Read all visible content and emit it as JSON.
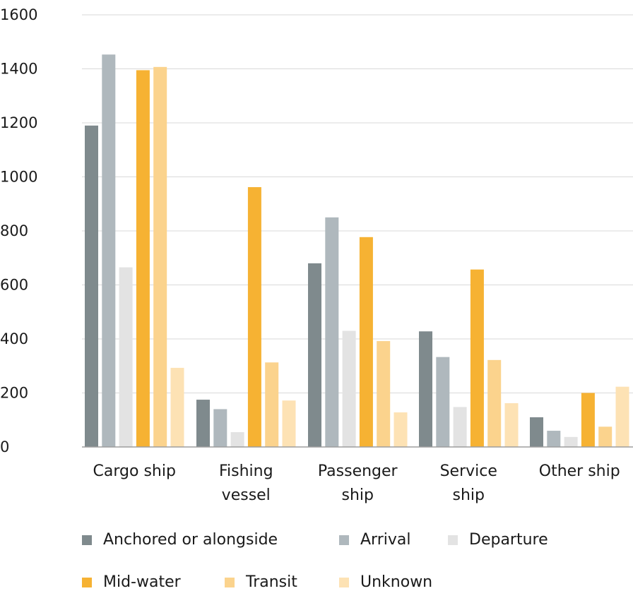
{
  "chart_data": {
    "type": "bar",
    "categories": [
      [
        "Cargo ship"
      ],
      [
        "Fishing",
        "vessel"
      ],
      [
        "Passenger",
        "ship"
      ],
      [
        "Service",
        "ship"
      ],
      [
        "Other ship"
      ]
    ],
    "series": [
      {
        "name": "Anchored or alongside",
        "color": "#7f8a8d",
        "values": [
          1190,
          175,
          680,
          428,
          110
        ]
      },
      {
        "name": "Arrival",
        "color": "#afb8bd",
        "values": [
          1453,
          140,
          850,
          333,
          60
        ]
      },
      {
        "name": "Departure",
        "color": "#e3e3e3",
        "values": [
          665,
          55,
          430,
          148,
          37
        ]
      },
      {
        "name": "Mid-water",
        "color": "#f6b233",
        "values": [
          1395,
          962,
          777,
          657,
          200
        ]
      },
      {
        "name": "Transit",
        "color": "#fbd38d",
        "values": [
          1407,
          313,
          392,
          322,
          75
        ]
      },
      {
        "name": "Unknown",
        "color": "#fde2b4",
        "values": [
          293,
          172,
          128,
          162,
          223
        ]
      }
    ],
    "yticks": [
      "0",
      "200",
      "400",
      "600",
      "800",
      "1000",
      "1200",
      "1400",
      "1600"
    ],
    "ylim": [
      0,
      1600
    ],
    "grid": true,
    "legend_position": "bottom"
  }
}
